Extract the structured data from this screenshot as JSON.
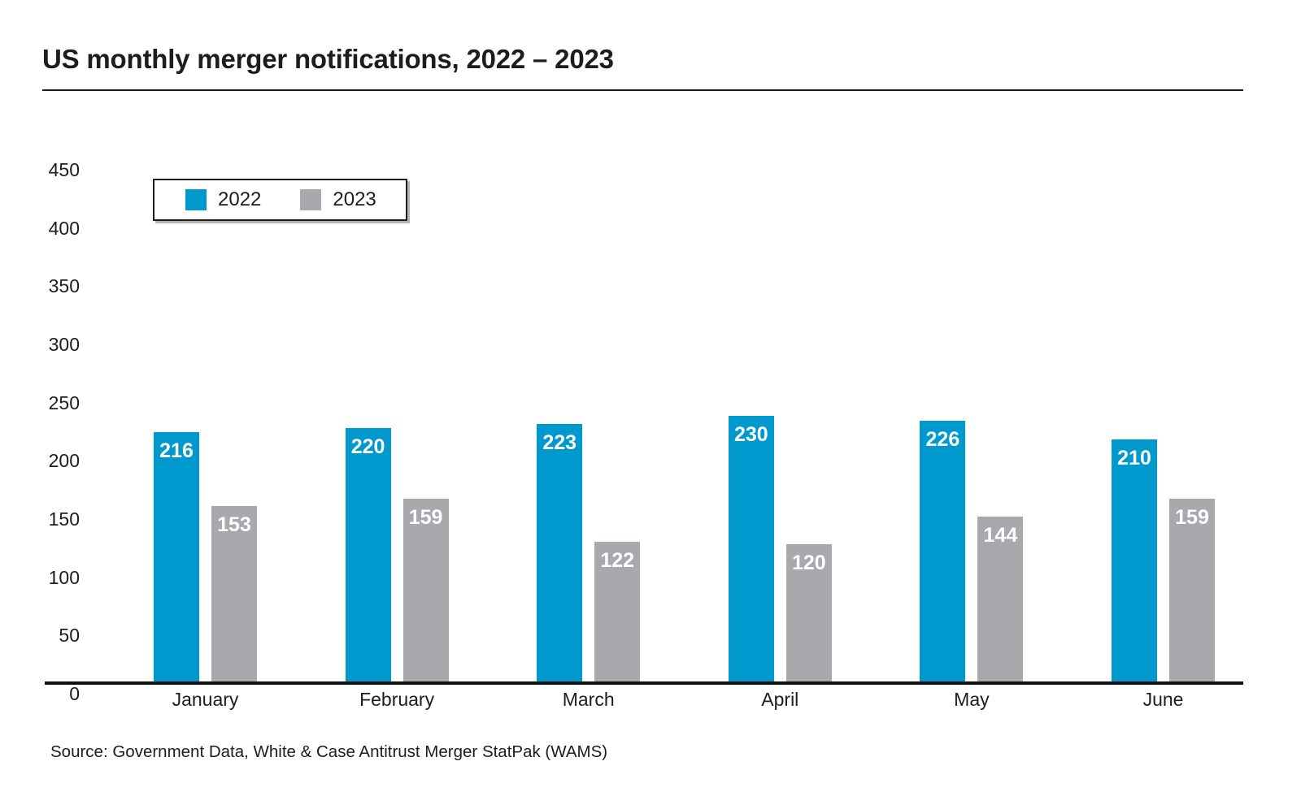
{
  "title": "US monthly merger notifications, 2022 – 2023",
  "source_note": "Source: Government Data, White & Case Antitrust Merger StatPak (WAMS)",
  "colors": {
    "series_2022": "#0099CD",
    "series_2023": "#A7A9AC",
    "text": "#1d1d1b",
    "axis": "#111111",
    "background": "#ffffff"
  },
  "legend": {
    "items": [
      {
        "label": "2022",
        "color": "#0099CD"
      },
      {
        "label": "2023",
        "color": "#A7A9AC"
      }
    ]
  },
  "chart_data": {
    "type": "bar",
    "title": "US monthly merger notifications, 2022 – 2023",
    "categories": [
      "January",
      "February",
      "March",
      "April",
      "May",
      "June"
    ],
    "series": [
      {
        "name": "2022",
        "color": "#0099CD",
        "values": [
          216,
          220,
          223,
          230,
          226,
          210
        ]
      },
      {
        "name": "2023",
        "color": "#A7A9AC",
        "values": [
          153,
          159,
          122,
          120,
          144,
          159
        ]
      }
    ],
    "xlabel": "",
    "ylabel": "",
    "ylim": [
      0,
      450
    ],
    "yticks": [
      0,
      50,
      100,
      150,
      200,
      250,
      300,
      350,
      400,
      450
    ],
    "grid": false,
    "legend_position": "top-left-inside",
    "data_labels": "inside-top-white"
  }
}
